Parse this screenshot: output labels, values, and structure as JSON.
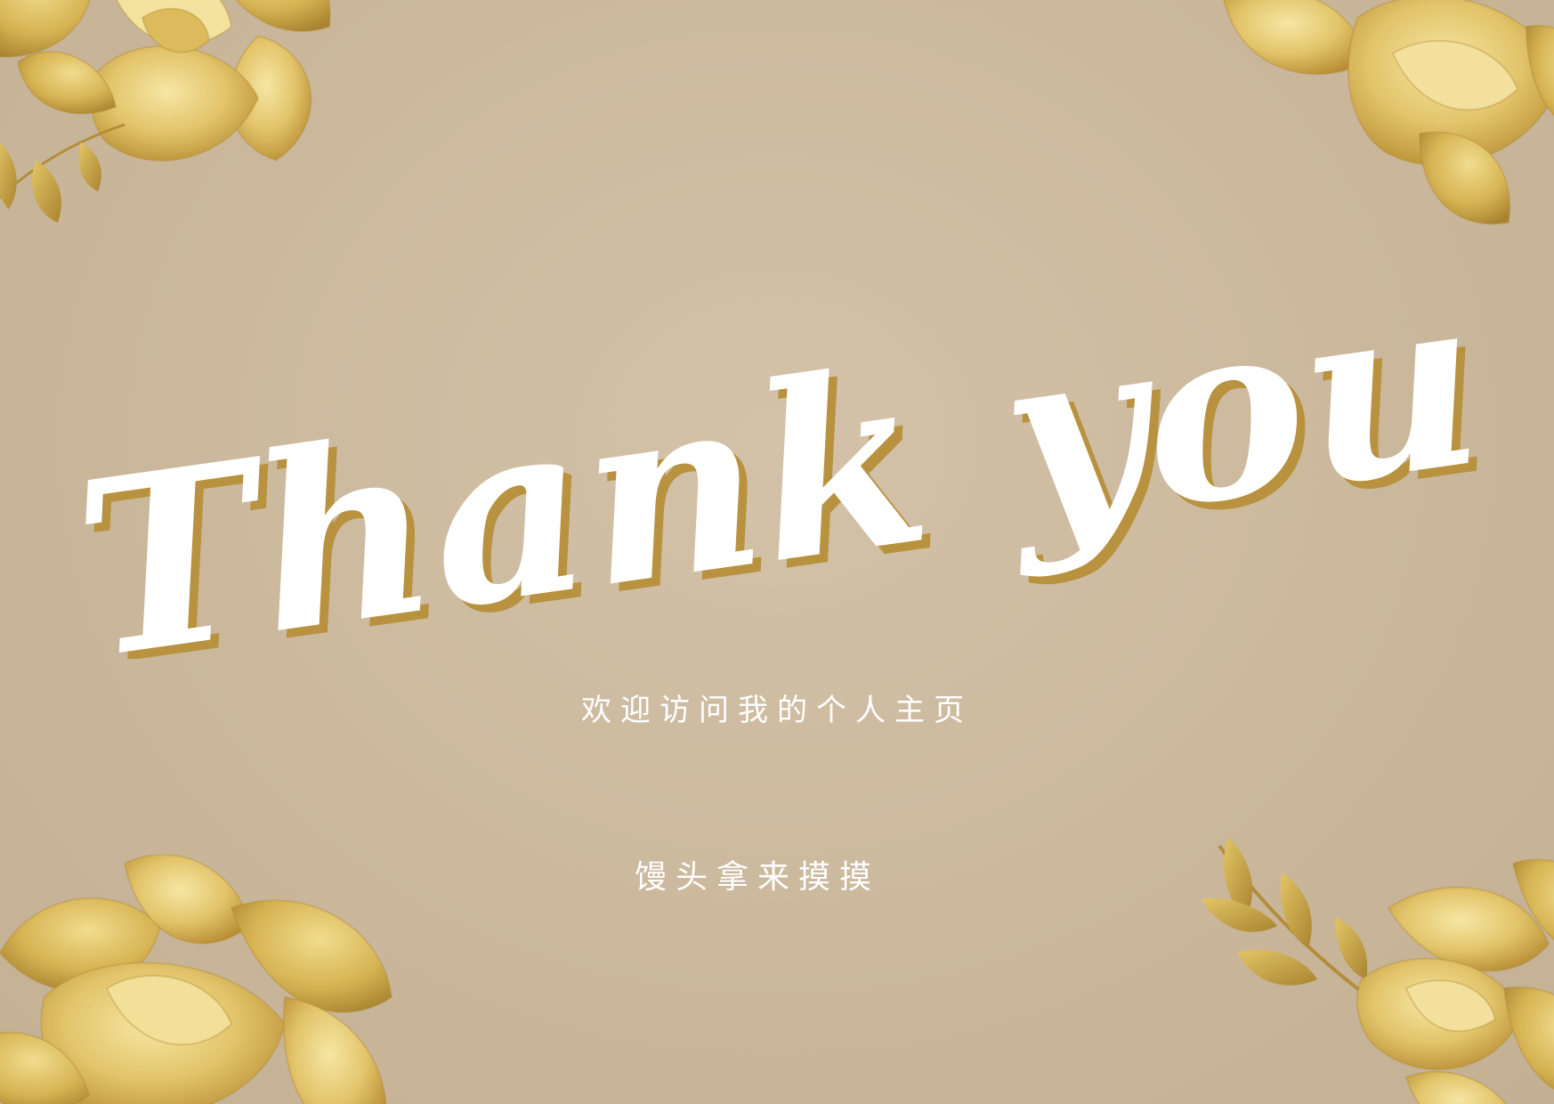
{
  "card": {
    "title": "Thank you",
    "subtitle": "欢迎访问我的个人主页",
    "signature": "馒头拿来摸摸"
  },
  "colors": {
    "background": "#cbb89c",
    "title_fill": "#ffffff",
    "title_shadow": "#b8923e",
    "gold_light": "#ecd68a",
    "gold_mid": "#d8b556",
    "gold_dark": "#b7913a",
    "subtitle_text": "#ffffff"
  },
  "decorations": [
    {
      "name": "flower-top-left",
      "icon": "gold-flower"
    },
    {
      "name": "sprig-top-left",
      "icon": "gold-leaf-sprig"
    },
    {
      "name": "flower-top-right",
      "icon": "gold-flower"
    },
    {
      "name": "flower-bottom-left",
      "icon": "gold-flower"
    },
    {
      "name": "sprig-bottom-right",
      "icon": "gold-leaf-sprig"
    },
    {
      "name": "flower-bottom-right",
      "icon": "gold-flower"
    }
  ]
}
